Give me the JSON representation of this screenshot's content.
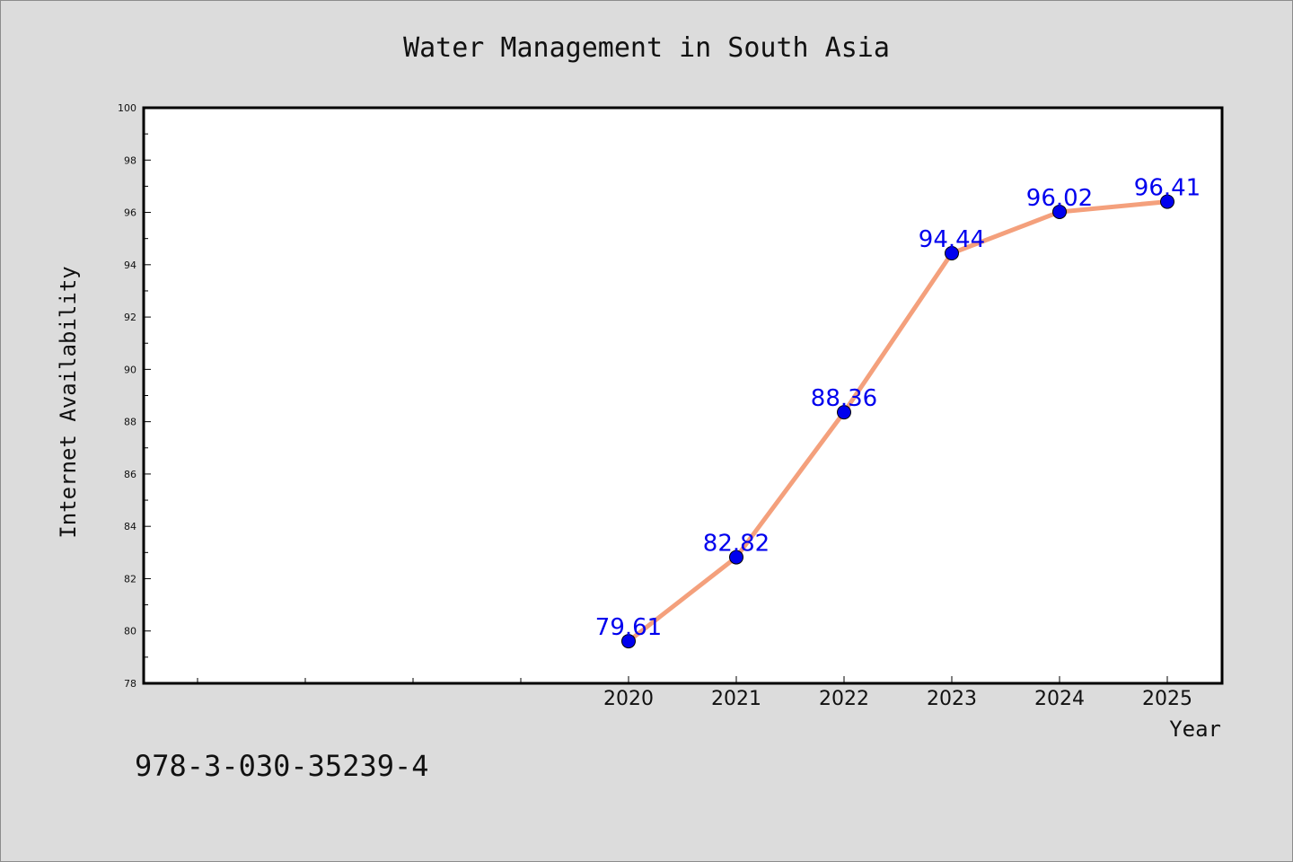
{
  "chart_data": {
    "type": "line",
    "title": "Water Management in South Asia",
    "xlabel": "Year",
    "ylabel": "Internet Availability",
    "x": [
      "2020",
      "2021",
      "2022",
      "2023",
      "2024",
      "2025"
    ],
    "y": [
      79.61,
      82.82,
      88.36,
      94.44,
      96.02,
      96.41
    ],
    "data_labels": [
      "79.61",
      "82.82",
      "88.36",
      "94.44",
      "96.02",
      "96.41"
    ],
    "ylim": [
      78,
      100
    ],
    "yticks": [
      "78",
      "80",
      "82",
      "84",
      "86",
      "88",
      "90",
      "92",
      "94",
      "96",
      "98",
      "100"
    ],
    "xticks": [
      "2020",
      "2021",
      "2022",
      "2023",
      "2024",
      "2025"
    ],
    "grid": false,
    "colors": {
      "line": "#f4a07c",
      "marker": "#0000ee",
      "data_label": "#0000ee",
      "plot_background": "#ffffff",
      "figure_background": "#dcdcdc"
    }
  },
  "footer_text": "978-3-030-35239-4"
}
